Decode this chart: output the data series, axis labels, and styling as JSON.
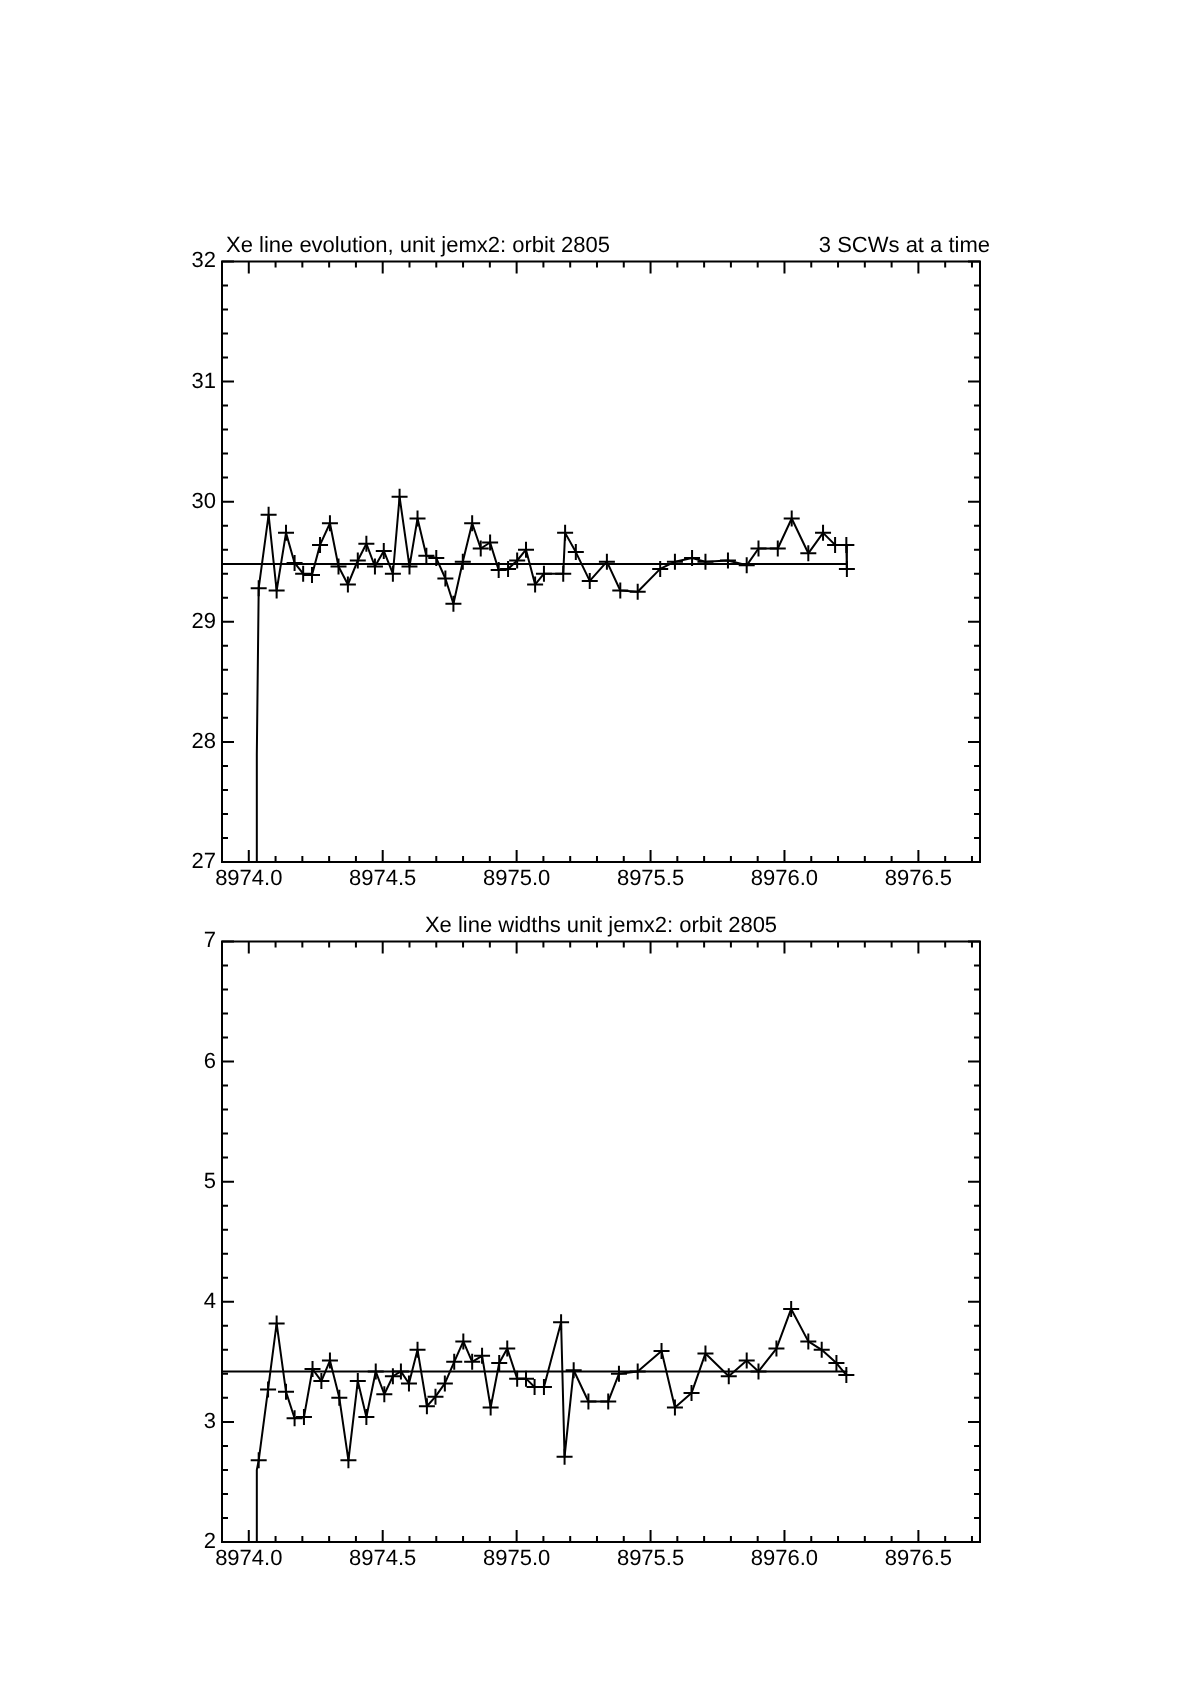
{
  "chart_data": [
    {
      "type": "line",
      "title": "Xe line evolution, unit jemx2: orbit 2805",
      "subtitle": "3 SCWs at a time",
      "marker": "cross",
      "xlim": [
        8973.9,
        8976.73
      ],
      "xticks": [
        {
          "value": 8973.9,
          "label": null
        },
        {
          "value": 8974.0,
          "label": "8974.0"
        },
        {
          "value": 8974.1,
          "label": null
        },
        {
          "value": 8974.2,
          "label": null
        },
        {
          "value": 8974.3,
          "label": null
        },
        {
          "value": 8974.4,
          "label": null
        },
        {
          "value": 8974.5,
          "label": "8974.5"
        },
        {
          "value": 8974.6,
          "label": null
        },
        {
          "value": 8974.7,
          "label": null
        },
        {
          "value": 8974.8,
          "label": null
        },
        {
          "value": 8974.9,
          "label": null
        },
        {
          "value": 8975.0,
          "label": "8975.0"
        },
        {
          "value": 8975.1,
          "label": null
        },
        {
          "value": 8975.2,
          "label": null
        },
        {
          "value": 8975.3,
          "label": null
        },
        {
          "value": 8975.4,
          "label": null
        },
        {
          "value": 8975.5,
          "label": "8975.5"
        },
        {
          "value": 8975.6,
          "label": null
        },
        {
          "value": 8975.7,
          "label": null
        },
        {
          "value": 8975.8,
          "label": null
        },
        {
          "value": 8975.9,
          "label": null
        },
        {
          "value": 8976.0,
          "label": "8976.0"
        },
        {
          "value": 8976.1,
          "label": null
        },
        {
          "value": 8976.2,
          "label": null
        },
        {
          "value": 8976.3,
          "label": null
        },
        {
          "value": 8976.4,
          "label": null
        },
        {
          "value": 8976.5,
          "label": "8976.5"
        },
        {
          "value": 8976.6,
          "label": null
        },
        {
          "value": 8976.7,
          "label": null
        }
      ],
      "ylim": [
        27,
        32
      ],
      "yticks": [
        27,
        {
          "value": 27.2,
          "label": null
        },
        {
          "value": 27.4,
          "label": null
        },
        {
          "value": 27.6,
          "label": null
        },
        {
          "value": 27.8,
          "label": null
        },
        28,
        {
          "value": 28.2,
          "label": null
        },
        {
          "value": 28.4,
          "label": null
        },
        {
          "value": 28.6,
          "label": null
        },
        {
          "value": 28.8,
          "label": null
        },
        29,
        {
          "value": 29.2,
          "label": null
        },
        {
          "value": 29.4,
          "label": null
        },
        {
          "value": 29.6,
          "label": null
        },
        {
          "value": 29.8,
          "label": null
        },
        30,
        {
          "value": 30.2,
          "label": null
        },
        {
          "value": 30.4,
          "label": null
        },
        {
          "value": 30.6,
          "label": null
        },
        {
          "value": 30.8,
          "label": null
        },
        31,
        {
          "value": 31.2,
          "label": null
        },
        {
          "value": 31.4,
          "label": null
        },
        {
          "value": 31.6,
          "label": null
        },
        {
          "value": 31.8,
          "label": null
        },
        32
      ],
      "series": [
        {
          "marker": "none",
          "color": "#000000",
          "x": [
            8974.027,
            8974.03,
            8974.037
          ],
          "values": [
            27,
            27.9,
            29.28
          ]
        },
        {
          "color": "#000000",
          "x": [
            8974.037,
            8974.074,
            8974.104,
            8974.139,
            8974.171,
            8974.203,
            8974.236,
            8974.266,
            8974.303,
            8974.335,
            8974.37,
            8974.407,
            8974.439,
            8974.471,
            8974.504,
            8974.538,
            8974.563,
            8974.6,
            8974.63,
            8974.663,
            8974.7,
            8974.734,
            8974.764,
            8974.799,
            8974.834,
            8974.866,
            8974.901,
            8974.933,
            8974.968,
            8975.002,
            8975.035,
            8975.069,
            8975.102,
            8975.174,
            8975.181,
            8975.221,
            8975.273,
            8975.337,
            8975.387,
            8975.452,
            8975.536,
            8975.591,
            8975.655,
            8975.705,
            8975.789,
            8975.859,
            8975.903,
            8975.975,
            8976.027,
            8976.089,
            8976.144,
            8976.189,
            8976.231,
            8976.233
          ],
          "values": [
            29.28,
            29.89,
            29.26,
            29.74,
            29.49,
            29.4,
            29.39,
            29.64,
            29.82,
            29.46,
            29.31,
            29.51,
            29.65,
            29.46,
            29.59,
            29.4,
            30.04,
            29.46,
            29.86,
            29.55,
            29.53,
            29.36,
            29.15,
            29.5,
            29.82,
            29.61,
            29.66,
            29.43,
            29.44,
            29.51,
            29.6,
            29.31,
            29.4,
            29.4,
            29.74,
            29.58,
            29.34,
            29.5,
            29.26,
            29.25,
            29.44,
            29.5,
            29.53,
            29.5,
            29.51,
            29.47,
            29.61,
            29.61,
            29.86,
            29.57,
            29.74,
            29.64,
            29.64,
            29.44
          ]
        },
        {
          "marker": "none",
          "color": "#000000",
          "x": [
            8973.9,
            8976.231
          ],
          "values": [
            29.48,
            29.48
          ]
        }
      ]
    },
    {
      "type": "line",
      "title": "Xe line widths unit jemx2: orbit 2805",
      "marker": "cross",
      "xlim": [
        8973.9,
        8976.73
      ],
      "xticks": [
        {
          "value": 8973.9,
          "label": null
        },
        {
          "value": 8974.0,
          "label": "8974.0"
        },
        {
          "value": 8974.1,
          "label": null
        },
        {
          "value": 8974.2,
          "label": null
        },
        {
          "value": 8974.3,
          "label": null
        },
        {
          "value": 8974.4,
          "label": null
        },
        {
          "value": 8974.5,
          "label": "8974.5"
        },
        {
          "value": 8974.6,
          "label": null
        },
        {
          "value": 8974.7,
          "label": null
        },
        {
          "value": 8974.8,
          "label": null
        },
        {
          "value": 8974.9,
          "label": null
        },
        {
          "value": 8975.0,
          "label": "8975.0"
        },
        {
          "value": 8975.1,
          "label": null
        },
        {
          "value": 8975.2,
          "label": null
        },
        {
          "value": 8975.3,
          "label": null
        },
        {
          "value": 8975.4,
          "label": null
        },
        {
          "value": 8975.5,
          "label": "8975.5"
        },
        {
          "value": 8975.6,
          "label": null
        },
        {
          "value": 8975.7,
          "label": null
        },
        {
          "value": 8975.8,
          "label": null
        },
        {
          "value": 8975.9,
          "label": null
        },
        {
          "value": 8976.0,
          "label": "8976.0"
        },
        {
          "value": 8976.1,
          "label": null
        },
        {
          "value": 8976.2,
          "label": null
        },
        {
          "value": 8976.3,
          "label": null
        },
        {
          "value": 8976.4,
          "label": null
        },
        {
          "value": 8976.5,
          "label": "8976.5"
        },
        {
          "value": 8976.6,
          "label": null
        },
        {
          "value": 8976.7,
          "label": null
        }
      ],
      "ylim": [
        2,
        7
      ],
      "yticks": [
        2,
        {
          "value": 2.2,
          "label": null
        },
        {
          "value": 2.4,
          "label": null
        },
        {
          "value": 2.6,
          "label": null
        },
        {
          "value": 2.8,
          "label": null
        },
        3,
        {
          "value": 3.2,
          "label": null
        },
        {
          "value": 3.4,
          "label": null
        },
        {
          "value": 3.6,
          "label": null
        },
        {
          "value": 3.8,
          "label": null
        },
        4,
        {
          "value": 4.2,
          "label": null
        },
        {
          "value": 4.4,
          "label": null
        },
        {
          "value": 4.6,
          "label": null
        },
        {
          "value": 4.8,
          "label": null
        },
        5,
        {
          "value": 5.2,
          "label": null
        },
        {
          "value": 5.4,
          "label": null
        },
        {
          "value": 5.6,
          "label": null
        },
        {
          "value": 5.8,
          "label": null
        },
        6,
        {
          "value": 6.2,
          "label": null
        },
        {
          "value": 6.4,
          "label": null
        },
        {
          "value": 6.6,
          "label": null
        },
        {
          "value": 6.8,
          "label": null
        },
        7
      ],
      "series": [
        {
          "marker": "none",
          "color": "#000000",
          "x": [
            8974.027,
            8974.03,
            8974.037
          ],
          "values": [
            2,
            2.6,
            2.68
          ]
        },
        {
          "color": "#000000",
          "x": [
            8974.037,
            8974.072,
            8974.104,
            8974.139,
            8974.171,
            8974.206,
            8974.238,
            8974.271,
            8974.303,
            8974.338,
            8974.372,
            8974.407,
            8974.439,
            8974.474,
            8974.506,
            8974.538,
            8974.568,
            8974.598,
            8974.63,
            8974.665,
            8974.697,
            8974.732,
            8974.767,
            8974.801,
            8974.834,
            8974.871,
            8974.903,
            8974.935,
            8974.965,
            8975.002,
            8975.035,
            8975.067,
            8975.102,
            8975.166,
            8975.179,
            8975.213,
            8975.268,
            8975.342,
            8975.382,
            8975.452,
            8975.541,
            8975.591,
            8975.653,
            8975.705,
            8975.792,
            8975.859,
            8975.903,
            8975.97,
            8976.025,
            8976.089,
            8976.139,
            8976.194,
            8976.231
          ],
          "values": [
            2.68,
            3.27,
            3.82,
            3.25,
            3.03,
            3.04,
            3.44,
            3.34,
            3.51,
            3.2,
            2.68,
            3.34,
            3.04,
            3.42,
            3.23,
            3.38,
            3.42,
            3.32,
            3.6,
            3.13,
            3.21,
            3.32,
            3.5,
            3.67,
            3.5,
            3.55,
            3.12,
            3.49,
            3.61,
            3.36,
            3.36,
            3.29,
            3.29,
            3.83,
            2.71,
            3.43,
            3.17,
            3.17,
            3.4,
            3.42,
            3.59,
            3.12,
            3.24,
            3.57,
            3.38,
            3.51,
            3.42,
            3.61,
            3.94,
            3.67,
            3.6,
            3.49,
            3.39
          ]
        },
        {
          "marker": "none",
          "color": "#000000",
          "x": [
            8973.9,
            8976.231
          ],
          "values": [
            3.42,
            3.42
          ]
        }
      ]
    }
  ]
}
